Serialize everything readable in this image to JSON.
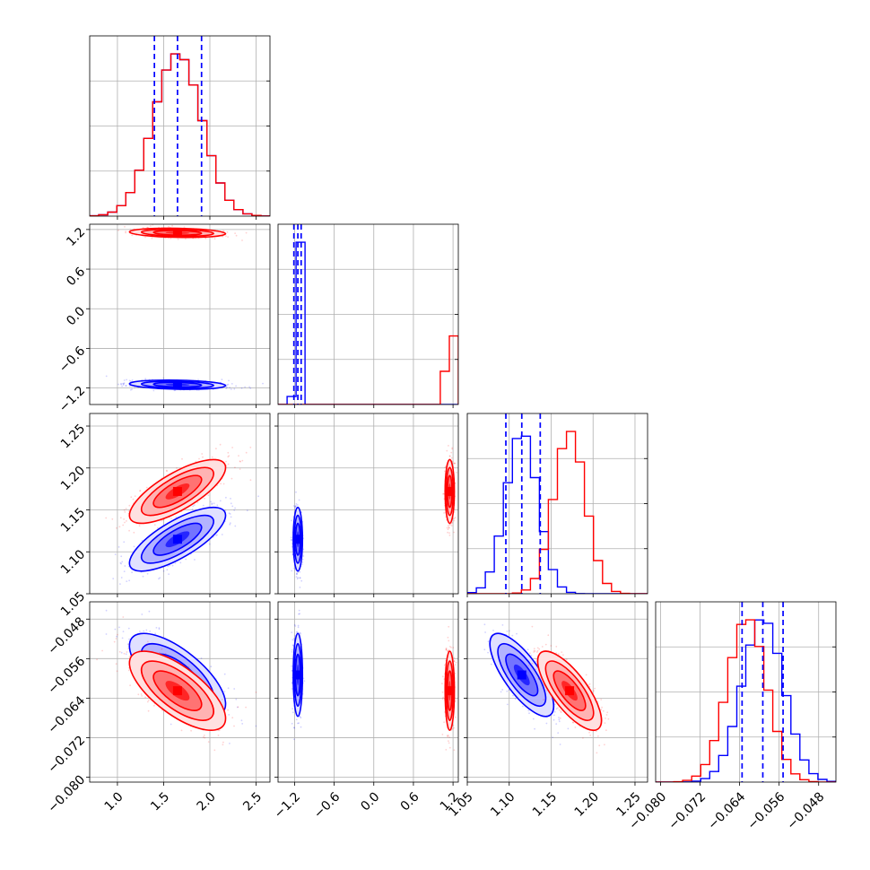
{
  "chart_data": {
    "type": "corner",
    "title": "",
    "grid": true,
    "params": [
      {
        "index": 0,
        "range": [
          0.7,
          2.65
        ],
        "ticks": [
          1.0,
          1.5,
          2.0,
          2.5
        ],
        "tick_labels": [
          "1.0",
          "1.5",
          "2.0",
          "2.5"
        ]
      },
      {
        "index": 1,
        "range": [
          -1.45,
          1.28
        ],
        "ticks": [
          -1.2,
          -0.6,
          0.0,
          0.6,
          1.2
        ],
        "tick_labels": [
          "−1.2",
          "−0.6",
          "0.0",
          "0.6",
          "1.2"
        ]
      },
      {
        "index": 2,
        "range": [
          1.05,
          1.265
        ],
        "ticks": [
          1.05,
          1.1,
          1.15,
          1.2,
          1.25
        ],
        "tick_labels": [
          "1.05",
          "1.10",
          "1.15",
          "1.20",
          "1.25"
        ]
      },
      {
        "index": 3,
        "range": [
          -0.081,
          -0.0445
        ],
        "ticks": [
          -0.08,
          -0.072,
          -0.064,
          -0.056,
          -0.048
        ],
        "tick_labels": [
          "−0.080",
          "−0.072",
          "−0.064",
          "−0.056",
          "−0.048"
        ]
      }
    ],
    "series": [
      {
        "color": "#0000ff",
        "mean": [
          1.65,
          -1.15,
          1.115,
          -0.0593
        ],
        "std": [
          0.26,
          0.035,
          0.019,
          0.0042
        ],
        "quantiles": [
          [
            1.4,
            1.65,
            1.91
          ],
          [
            -1.21,
            -1.15,
            -1.1
          ],
          [
            1.096,
            1.115,
            1.137
          ],
          [
            -0.0635,
            -0.0593,
            -0.0552
          ]
        ]
      },
      {
        "color": "#ff0000",
        "mean": [
          1.65,
          1.15,
          1.172,
          -0.0625
        ],
        "std": [
          0.26,
          0.035,
          0.019,
          0.004
        ],
        "quantiles": []
      }
    ],
    "correlations": [
      {
        "series": 0,
        "pair": [
          1,
          0
        ],
        "rho": -0.2
      },
      {
        "series": 0,
        "pair": [
          2,
          0
        ],
        "rho": 0.75
      },
      {
        "series": 0,
        "pair": [
          2,
          1
        ],
        "rho": 0.0
      },
      {
        "series": 0,
        "pair": [
          3,
          0
        ],
        "rho": -0.7
      },
      {
        "series": 0,
        "pair": [
          3,
          1
        ],
        "rho": 0.0
      },
      {
        "series": 0,
        "pair": [
          3,
          2
        ],
        "rho": -0.75
      },
      {
        "series": 1,
        "pair": [
          1,
          0
        ],
        "rho": -0.2
      },
      {
        "series": 1,
        "pair": [
          2,
          0
        ],
        "rho": 0.75
      },
      {
        "series": 1,
        "pair": [
          2,
          1
        ],
        "rho": 0.0
      },
      {
        "series": 1,
        "pair": [
          3,
          0
        ],
        "rho": -0.7
      },
      {
        "series": 1,
        "pair": [
          3,
          1
        ],
        "rho": 0.0
      },
      {
        "series": 1,
        "pair": [
          3,
          2
        ],
        "rho": -0.75
      }
    ]
  }
}
